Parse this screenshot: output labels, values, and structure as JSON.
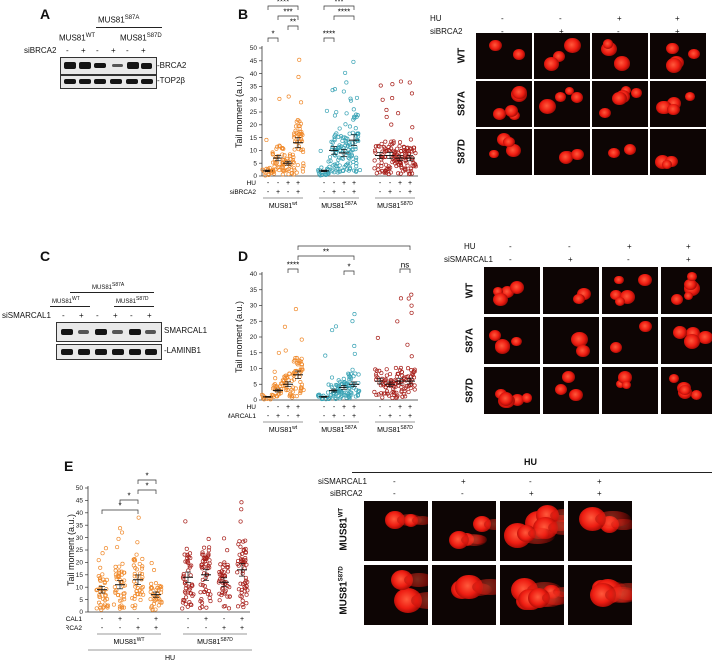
{
  "panels": {
    "A": {
      "letter": "A",
      "header_top": "MUS81",
      "header_top_sup": "S87A",
      "wt": "MUS81",
      "wt_sup": "WT",
      "s87d": "MUS81",
      "s87d_sup": "S87D",
      "treatment": "siBRCA2",
      "signs": [
        "-",
        "+",
        "-",
        "+",
        "-",
        "+"
      ],
      "bands": [
        "-BRCA2",
        "-TOP2β"
      ]
    },
    "B": {
      "letter": "B",
      "chart_ylabel": "Tail moment (a.u.)",
      "ticks": [
        "0",
        "5",
        "10",
        "15",
        "20",
        "25",
        "30",
        "35",
        "40",
        "45",
        "50"
      ],
      "row1_label": "HU",
      "row2_label": "siBRCA2",
      "row1_signs": [
        "-",
        "-",
        "+",
        "+",
        "-",
        "-",
        "+",
        "+",
        "-",
        "-",
        "+",
        "+"
      ],
      "row2_signs": [
        "-",
        "+",
        "-",
        "+",
        "-",
        "+",
        "-",
        "+",
        "-",
        "+",
        "-",
        "+"
      ],
      "groups": [
        {
          "name": "MUS81",
          "sup": "wt"
        },
        {
          "name": "MUS81",
          "sup": "S87A"
        },
        {
          "name": "MUS81",
          "sup": "S87D"
        }
      ],
      "sig": [
        "*",
        "****",
        "**",
        "***",
        "****",
        "***",
        "****"
      ],
      "image_hu_label": "HU",
      "image_treat_label": "siBRCA2",
      "image_hu_signs": [
        "-",
        "-",
        "+",
        "+"
      ],
      "image_treat_signs": [
        "-",
        "+",
        "-",
        "+"
      ],
      "rows": [
        "WT",
        "S87A",
        "S87D"
      ]
    },
    "C": {
      "letter": "C",
      "header_top": "MUS81",
      "header_top_sup": "S87A",
      "wt": "MUS81",
      "wt_sup": "WT",
      "s87d": "MUS81",
      "s87d_sup": "S87D",
      "treatment": "siSMARCAL1",
      "signs": [
        "-",
        "+",
        "-",
        "+",
        "-",
        "+"
      ],
      "bands": [
        "SMARCAL1",
        "-LAMINB1"
      ]
    },
    "D": {
      "letter": "D",
      "chart_ylabel": "Tail moment (a.u.)",
      "ticks": [
        "0",
        "5",
        "10",
        "15",
        "20",
        "25",
        "30",
        "35",
        "40"
      ],
      "row1_label": "HU",
      "row2_label": "siSMARCAL1",
      "row1_signs": [
        "-",
        "-",
        "+",
        "+",
        "-",
        "-",
        "+",
        "+",
        "-",
        "-",
        "+",
        "+"
      ],
      "row2_signs": [
        "-",
        "+",
        "-",
        "+",
        "-",
        "+",
        "-",
        "+",
        "-",
        "+",
        "-",
        "+"
      ],
      "groups": [
        {
          "name": "MUS81",
          "sup": "wt"
        },
        {
          "name": "MUS81",
          "sup": "S87A"
        },
        {
          "name": "MUS81",
          "sup": "S87D"
        }
      ],
      "sig": [
        "****",
        "**",
        "*",
        "***",
        "ns"
      ],
      "image_hu_label": "HU",
      "image_treat_label": "siSMARCAL1",
      "image_hu_signs": [
        "-",
        "-",
        "+",
        "+"
      ],
      "image_treat_signs": [
        "-",
        "+",
        "-",
        "+"
      ],
      "rows": [
        "WT",
        "S87A",
        "S87D"
      ]
    },
    "E": {
      "letter": "E",
      "chart_ylabel": "Tail moment (a.u.)",
      "ticks": [
        "0",
        "5",
        "10",
        "15",
        "20",
        "25",
        "30",
        "35",
        "40",
        "45",
        "50"
      ],
      "row1_label": "siSMARCAL1",
      "row2_label": "siBRCA2",
      "row1_signs": [
        "-",
        "+",
        "-",
        "+",
        "-",
        "+",
        "-",
        "+"
      ],
      "row2_signs": [
        "-",
        "-",
        "+",
        "+",
        "-",
        "-",
        "+",
        "+"
      ],
      "groups": [
        {
          "name": "MUS81",
          "sup": "WT"
        },
        {
          "name": "MUS81",
          "sup": "S87D"
        }
      ],
      "bottom_label": "HU",
      "sig": [
        "*",
        "*",
        "*",
        "*"
      ],
      "image_title": "HU",
      "image_r1_label": "siSMARCAL1",
      "image_r2_label": "siBRCA2",
      "image_r1_signs": [
        "-",
        "+",
        "-",
        "+"
      ],
      "image_r2_signs": [
        "-",
        "-",
        "+",
        "+"
      ],
      "rows": [
        {
          "name": "MUS81",
          "sup": "WT"
        },
        {
          "name": "MUS81",
          "sup": "S87D"
        }
      ]
    }
  },
  "colors": {
    "wt": "#f08a2c",
    "s87a": "#39a3b5",
    "s87d": "#a8201b",
    "comet": "#ee1d12"
  }
}
